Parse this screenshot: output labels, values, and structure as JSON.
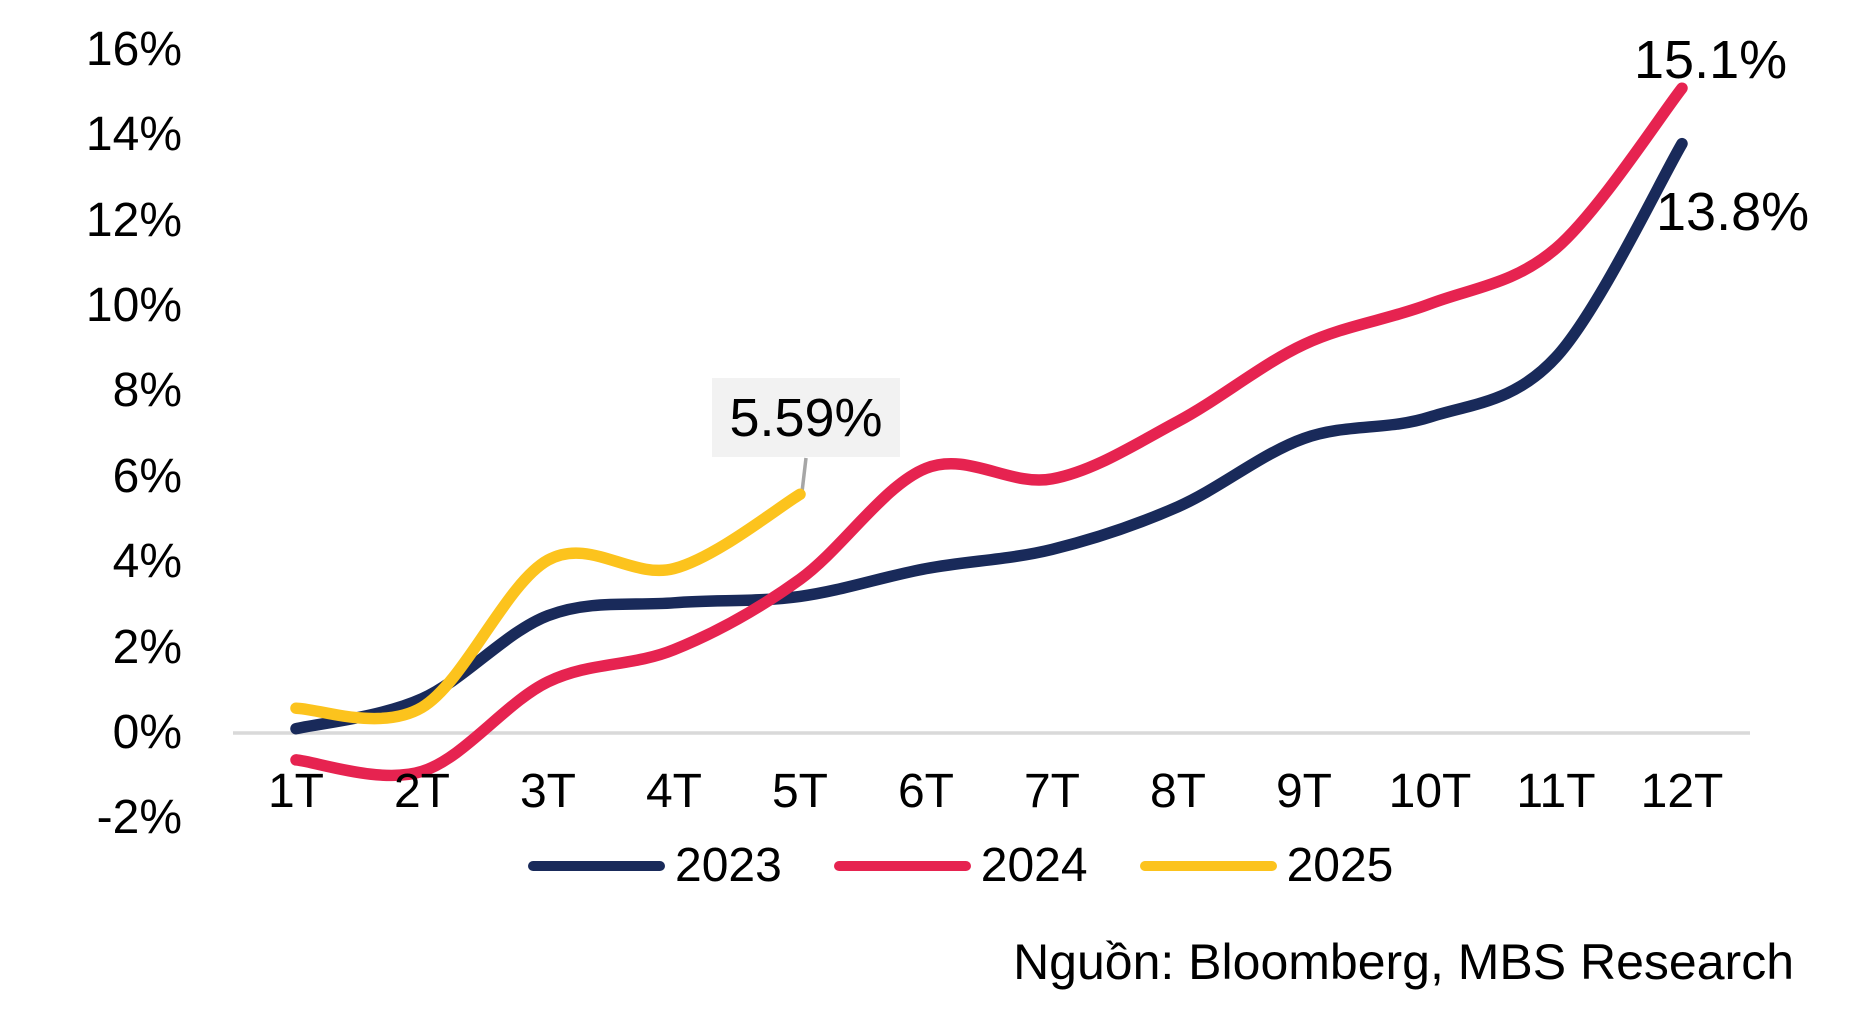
{
  "chart_data": {
    "type": "line",
    "title": "",
    "categories": [
      "1T",
      "2T",
      "3T",
      "4T",
      "5T",
      "6T",
      "7T",
      "8T",
      "9T",
      "10T",
      "11T",
      "12T"
    ],
    "series": [
      {
        "name": "2023",
        "color": "#192a5a",
        "values": [
          0.1,
          0.8,
          2.75,
          3.05,
          3.2,
          3.85,
          4.3,
          5.3,
          6.9,
          7.4,
          8.8,
          13.8
        ]
      },
      {
        "name": "2024",
        "color": "#e62350",
        "values": [
          -0.63,
          -0.9,
          1.2,
          1.95,
          3.6,
          6.2,
          5.95,
          7.3,
          9.1,
          10.05,
          11.35,
          15.1
        ]
      },
      {
        "name": "2025",
        "color": "#fcc31d",
        "values": [
          0.58,
          0.6,
          4.05,
          3.85,
          5.59
        ]
      }
    ],
    "ylim": [
      -2,
      16
    ],
    "ytick_labels": [
      "16%",
      "14%",
      "12%",
      "10%",
      "8%",
      "6%",
      "4%",
      "2%",
      "0%",
      "-2%"
    ],
    "xlabel": "",
    "ylabel": "",
    "grid": "zero-line-only",
    "legend_position": "bottom"
  },
  "annotations": {
    "end_2024": "15.1%",
    "end_2023": "13.8%",
    "end_2025": "5.59%"
  },
  "source": "Nguồn: Bloomberg, MBS Research",
  "colors": {
    "axis_line": "#d9d9d9",
    "callout_bg": "#f2f2f2",
    "callout_leader": "#a6a6a6",
    "text": "#000000"
  }
}
